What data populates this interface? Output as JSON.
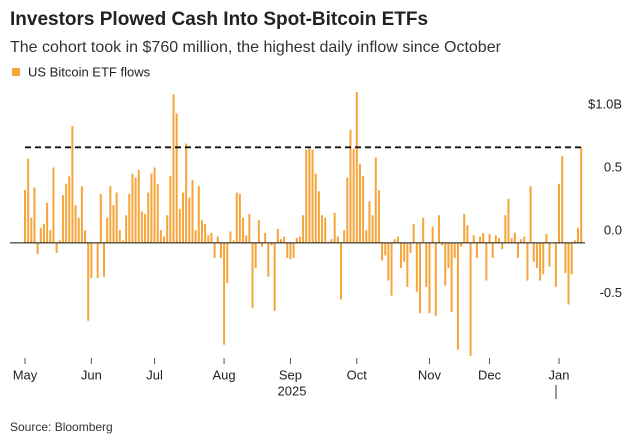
{
  "chart_data": {
    "type": "bar",
    "title": "Investors Plowed Cash Into Spot-Bitcoin ETFs",
    "subtitle": "The cohort took in $760 million, the highest daily inflow since October",
    "source": "Source: Bloomberg",
    "year_label": "2025",
    "series": [
      {
        "name": "US Bitcoin ETF flows",
        "color": "#f5a53a",
        "values": [
          0.42,
          0.67,
          0.2,
          0.44,
          -0.09,
          0.12,
          0.15,
          0.32,
          0.1,
          0.6,
          -0.08,
          0.02,
          0.38,
          0.47,
          0.53,
          0.93,
          0.3,
          0.2,
          0.45,
          0.1,
          -0.62,
          -0.28,
          0.0,
          -0.28,
          0.39,
          -0.27,
          0.2,
          0.45,
          0.3,
          0.4,
          0.1,
          0.02,
          0.22,
          0.39,
          0.55,
          0.52,
          0.58,
          0.25,
          0.23,
          0.4,
          0.55,
          0.6,
          0.47,
          0.1,
          0.05,
          0.22,
          0.53,
          1.18,
          1.03,
          0.27,
          0.4,
          0.79,
          0.36,
          0.5,
          0.1,
          0.45,
          0.18,
          0.15,
          0.06,
          0.08,
          -0.12,
          0.05,
          -0.12,
          -0.81,
          -0.32,
          0.09,
          0.02,
          0.4,
          0.39,
          0.2,
          0.06,
          0.23,
          -0.52,
          -0.2,
          0.18,
          -0.03,
          0.08,
          -0.27,
          -0.02,
          -0.54,
          0.11,
          0.03,
          0.05,
          -0.12,
          -0.13,
          -0.12,
          0.04,
          0.05,
          0.22,
          0.74,
          0.75,
          0.74,
          0.55,
          0.41,
          0.22,
          0.2,
          0.01,
          0.03,
          0.24,
          0.05,
          -0.45,
          0.1,
          0.52,
          0.9,
          0.75,
          1.2,
          0.63,
          0.53,
          0.1,
          0.33,
          0.22,
          0.68,
          0.42,
          -0.14,
          -0.1,
          -0.3,
          -0.42,
          0.03,
          0.05,
          -0.2,
          -0.15,
          -0.35,
          -0.08,
          0.15,
          -0.39,
          -0.56,
          0.2,
          -0.35,
          -0.56,
          0.13,
          -0.58,
          0.22,
          -0.02,
          -0.34,
          -0.2,
          -0.55,
          -0.12,
          -0.85,
          -0.03,
          0.23,
          0.14,
          -0.9,
          0.06,
          -0.12,
          0.05,
          0.08,
          -0.3,
          0.07,
          -0.12,
          0.06,
          0.04,
          -0.05,
          0.22,
          0.35,
          0.04,
          0.08,
          -0.12,
          0.03,
          0.05,
          -0.3,
          0.45,
          -0.15,
          -0.2,
          -0.3,
          -0.25,
          0.07,
          -0.19,
          0.0,
          -0.35,
          0.47,
          0.69,
          -0.24,
          -0.49,
          -0.25,
          0.02,
          0.12,
          0.76
        ]
      }
    ],
    "xticks": [
      {
        "value": 0,
        "label": "May"
      },
      {
        "value": 21,
        "label": "Jun"
      },
      {
        "value": 41,
        "label": "Jul"
      },
      {
        "value": 63,
        "label": "Aug"
      },
      {
        "value": 84,
        "label": "Sep"
      },
      {
        "value": 105,
        "label": "Oct"
      },
      {
        "value": 128,
        "label": "Nov"
      },
      {
        "value": 147,
        "label": "Dec"
      },
      {
        "value": 169,
        "label": "Jan"
      }
    ],
    "ylim": [
      -0.9,
      1.2
    ],
    "yticks": [
      -0.5,
      {
        "value": 0,
        "label": "0.0"
      },
      0.5,
      {
        "value": 1,
        "label": "$1.0B"
      }
    ],
    "reference_line": 0.76,
    "legend": "top-left"
  }
}
